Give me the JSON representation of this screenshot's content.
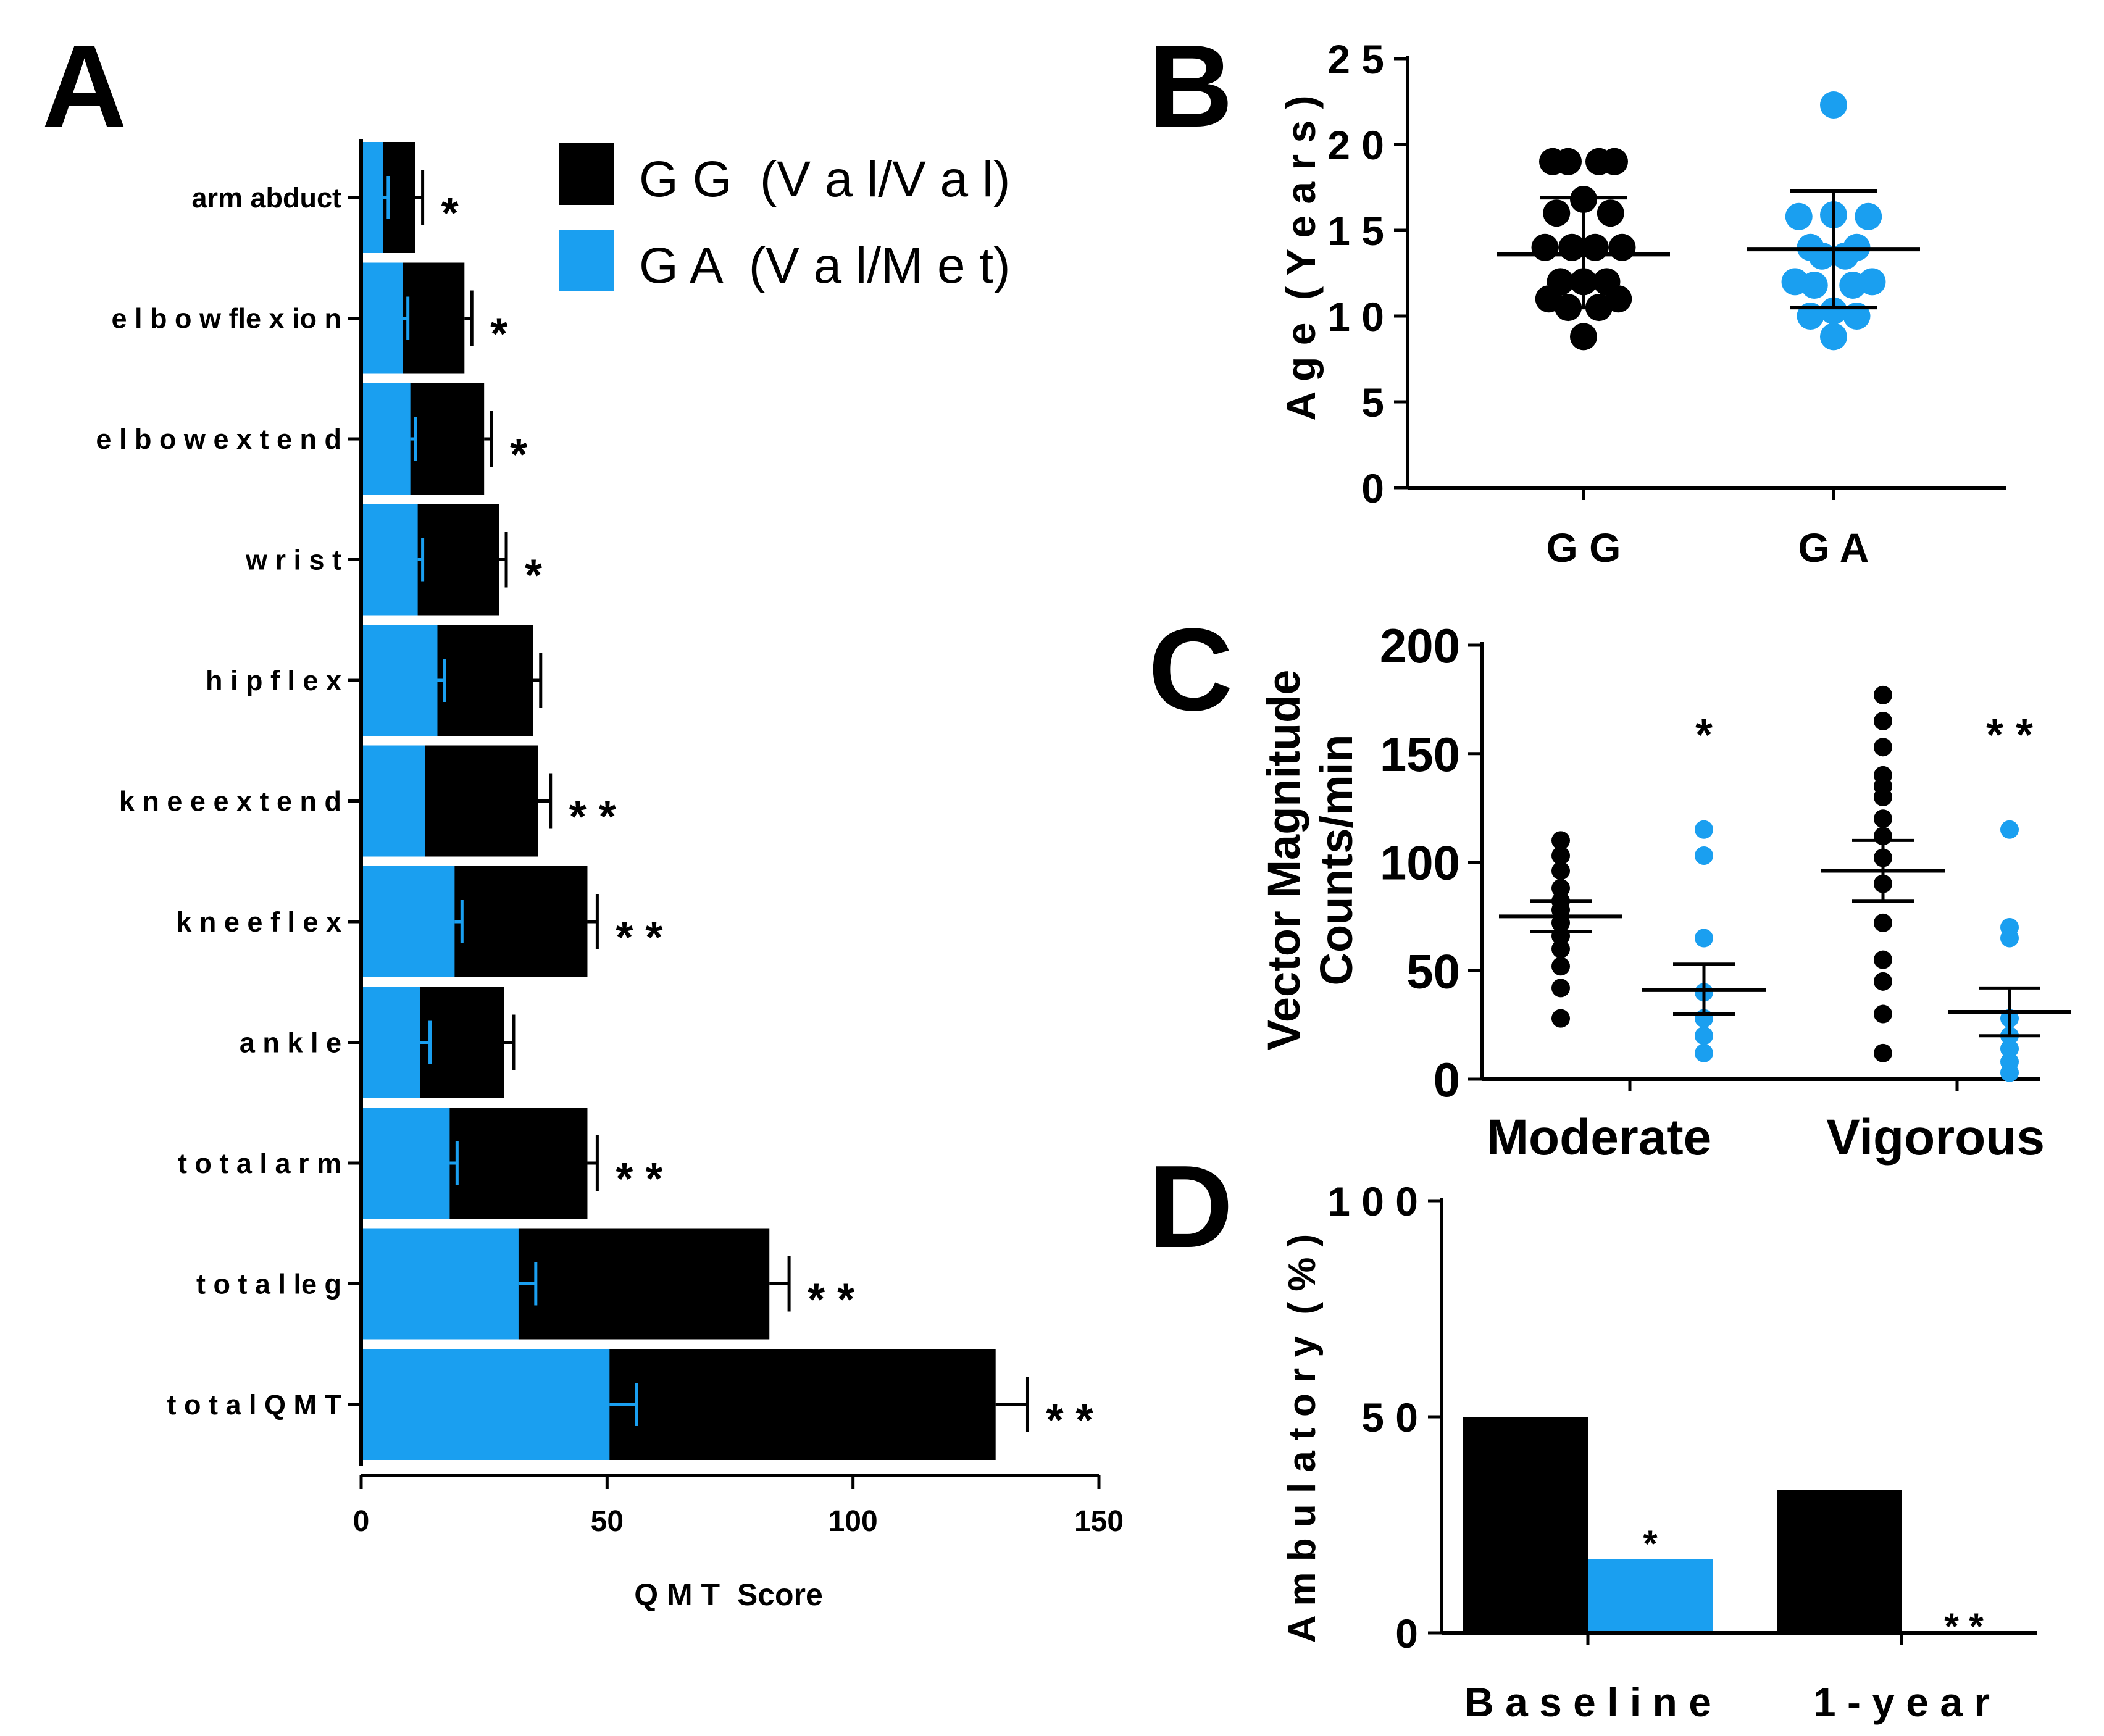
{
  "colors": {
    "gg": "#000000",
    "ga": "#1a9ff0",
    "axis": "#000000"
  },
  "legend": {
    "gg_label": "G G  (V a l/V a l)",
    "ga_label": "G A  (V a l/M e t)"
  },
  "chart_data": [
    {
      "panel": "A",
      "type": "bar",
      "orientation": "horizontal",
      "xlabel": "Q M T  Score",
      "ylabel": "",
      "xlim": [
        0,
        150
      ],
      "xticks": [
        0,
        50,
        100,
        150
      ],
      "categories": [
        "arm abduct",
        "elbow flexion",
        "elbow extend",
        "wrist",
        "hip flex",
        "knee extend",
        "knee flex",
        "ankle",
        "total arm",
        "total leg",
        "total QMT"
      ],
      "category_labels": [
        "arm abduct",
        "e l b o w  fle x io n",
        "e l b o w  e x t e n d",
        "w r i s t",
        "h i p  f l e x",
        "k n e e  e x t e n d",
        "k n e e  f l e x",
        "a n k l e",
        "t o t a l  a r m",
        "t o t a l  le g",
        "t o t a l  Q M T"
      ],
      "series": [
        {
          "name": "GG (Val/Val)",
          "values": [
            11,
            21,
            25,
            28,
            35,
            36,
            46,
            29,
            46,
            83,
            129
          ],
          "error": [
            1.5,
            1.5,
            1.5,
            1.5,
            1.5,
            2.5,
            2,
            2,
            2,
            4,
            6.5
          ]
        },
        {
          "name": "GA (Val/Met)",
          "values": [
            4.5,
            8.5,
            10,
            11.5,
            15.5,
            13,
            19,
            12,
            18,
            32,
            50.5
          ],
          "error": [
            1,
            1,
            1,
            1,
            1.5,
            0,
            1.5,
            2,
            1.5,
            3.5,
            5.5
          ]
        }
      ],
      "significance": [
        "*",
        "*",
        "*",
        "*",
        "",
        "* *",
        "* *",
        "",
        "* *",
        "* *",
        "* *"
      ]
    },
    {
      "panel": "B",
      "type": "scatter",
      "ylabel": "A g e  ( Y e a r s )",
      "ylim": [
        0,
        25
      ],
      "yticks": [
        "0",
        "5",
        "1 0",
        "1 5",
        "2 0",
        "2 5"
      ],
      "yticks_values": [
        0,
        5,
        10,
        15,
        20,
        25
      ],
      "categories": [
        "G G",
        "G A"
      ],
      "series": [
        {
          "name": "GG",
          "points": [
            [
              -0.4,
              19
            ],
            [
              -0.2,
              19
            ],
            [
              0.2,
              19
            ],
            [
              0.4,
              19
            ],
            [
              0,
              16.8
            ],
            [
              -0.35,
              16
            ],
            [
              0.35,
              16
            ],
            [
              -0.5,
              14
            ],
            [
              -0.15,
              14
            ],
            [
              0.15,
              14
            ],
            [
              0.5,
              14
            ],
            [
              -0.3,
              12
            ],
            [
              0,
              12
            ],
            [
              0.3,
              12
            ],
            [
              -0.45,
              11
            ],
            [
              0.45,
              11
            ],
            [
              -0.2,
              10.5
            ],
            [
              0.2,
              10.5
            ],
            [
              0,
              8.8
            ]
          ],
          "mean": 13.6,
          "sd_low": 10.5,
          "sd_high": 16.9
        },
        {
          "name": "GA",
          "points": [
            [
              0,
              22.3
            ],
            [
              -0.45,
              15.8
            ],
            [
              0,
              15.9
            ],
            [
              0.45,
              15.8
            ],
            [
              -0.3,
              14
            ],
            [
              0.3,
              14
            ],
            [
              -0.15,
              13.5
            ],
            [
              0.15,
              13.5
            ],
            [
              -0.5,
              12
            ],
            [
              0.5,
              12
            ],
            [
              -0.25,
              11.8
            ],
            [
              0.25,
              11.8
            ],
            [
              -0.3,
              10
            ],
            [
              0,
              10.3
            ],
            [
              0.3,
              10
            ],
            [
              0,
              8.8
            ]
          ],
          "mean": 13.9,
          "sd_low": 10.5,
          "sd_high": 17.3
        }
      ]
    },
    {
      "panel": "C",
      "type": "scatter",
      "ylabel": "Vector Magnitude",
      "ylabel2": "Counts/min",
      "ylim": [
        0,
        200
      ],
      "yticks": [
        "0",
        "50",
        "100",
        "150",
        "200"
      ],
      "yticks_values": [
        0,
        50,
        100,
        150,
        200
      ],
      "categories": [
        "Moderate",
        "Vigorous"
      ],
      "series": [
        {
          "name": "GG",
          "group": "Moderate",
          "points": [
            110,
            103,
            96,
            88,
            82,
            78,
            72,
            66,
            60,
            52,
            42,
            28
          ],
          "mean": 75,
          "sem_low": 68,
          "sem_high": 82
        },
        {
          "name": "GA",
          "group": "Moderate",
          "points": [
            115,
            103,
            65,
            40,
            28,
            20,
            12
          ],
          "mean": 41,
          "sem_low": 30,
          "sem_high": 53,
          "sig": "*"
        },
        {
          "name": "GG",
          "group": "Vigorous",
          "points": [
            177,
            165,
            153,
            140,
            135,
            130,
            120,
            112,
            102,
            90,
            72,
            55,
            45,
            30,
            12
          ],
          "mean": 96,
          "sem_low": 82,
          "sem_high": 110
        },
        {
          "name": "GA",
          "group": "Vigorous",
          "points": [
            115,
            70,
            65,
            28,
            20,
            14,
            8,
            3
          ],
          "mean": 31,
          "sem_low": 20,
          "sem_high": 42,
          "sig": "* *"
        }
      ]
    },
    {
      "panel": "D",
      "type": "bar",
      "ylabel": "A m b u l a t o r y  ( % )",
      "ylim": [
        0,
        100
      ],
      "yticks": [
        "0",
        "5 0",
        "1 0 0"
      ],
      "yticks_values": [
        0,
        50,
        100
      ],
      "categories": [
        "B a s e l i n e",
        "1 - y e a r"
      ],
      "series": [
        {
          "name": "GG",
          "values": [
            50,
            33
          ]
        },
        {
          "name": "GA",
          "values": [
            17,
            0
          ]
        }
      ],
      "significance": [
        "*",
        "* *"
      ]
    }
  ]
}
